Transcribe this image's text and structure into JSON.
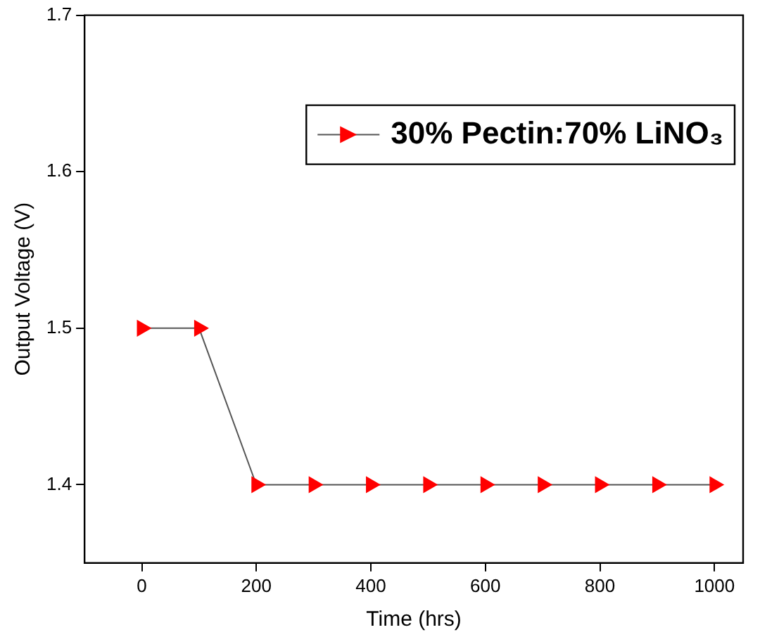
{
  "chart_data": {
    "type": "line",
    "xlabel": "Time (hrs)",
    "ylabel": "Output Voltage (V)",
    "x": [
      0,
      100,
      200,
      300,
      400,
      500,
      600,
      700,
      800,
      900,
      1000
    ],
    "series": [
      {
        "name": "30% Pectin:70% LiNO₃",
        "color": "#ff0000",
        "values": [
          1.5,
          1.5,
          1.4,
          1.4,
          1.4,
          1.4,
          1.4,
          1.4,
          1.4,
          1.4,
          1.4
        ]
      }
    ],
    "xlim": [
      -100,
      1050
    ],
    "xticks": [
      0,
      200,
      400,
      600,
      800,
      1000
    ],
    "ylim": [
      1.35,
      1.7
    ],
    "yticks": [
      1.4,
      1.5,
      1.6,
      1.7
    ],
    "grid": false,
    "legend": "top right",
    "marker": "triangle",
    "line_style": "solid"
  }
}
